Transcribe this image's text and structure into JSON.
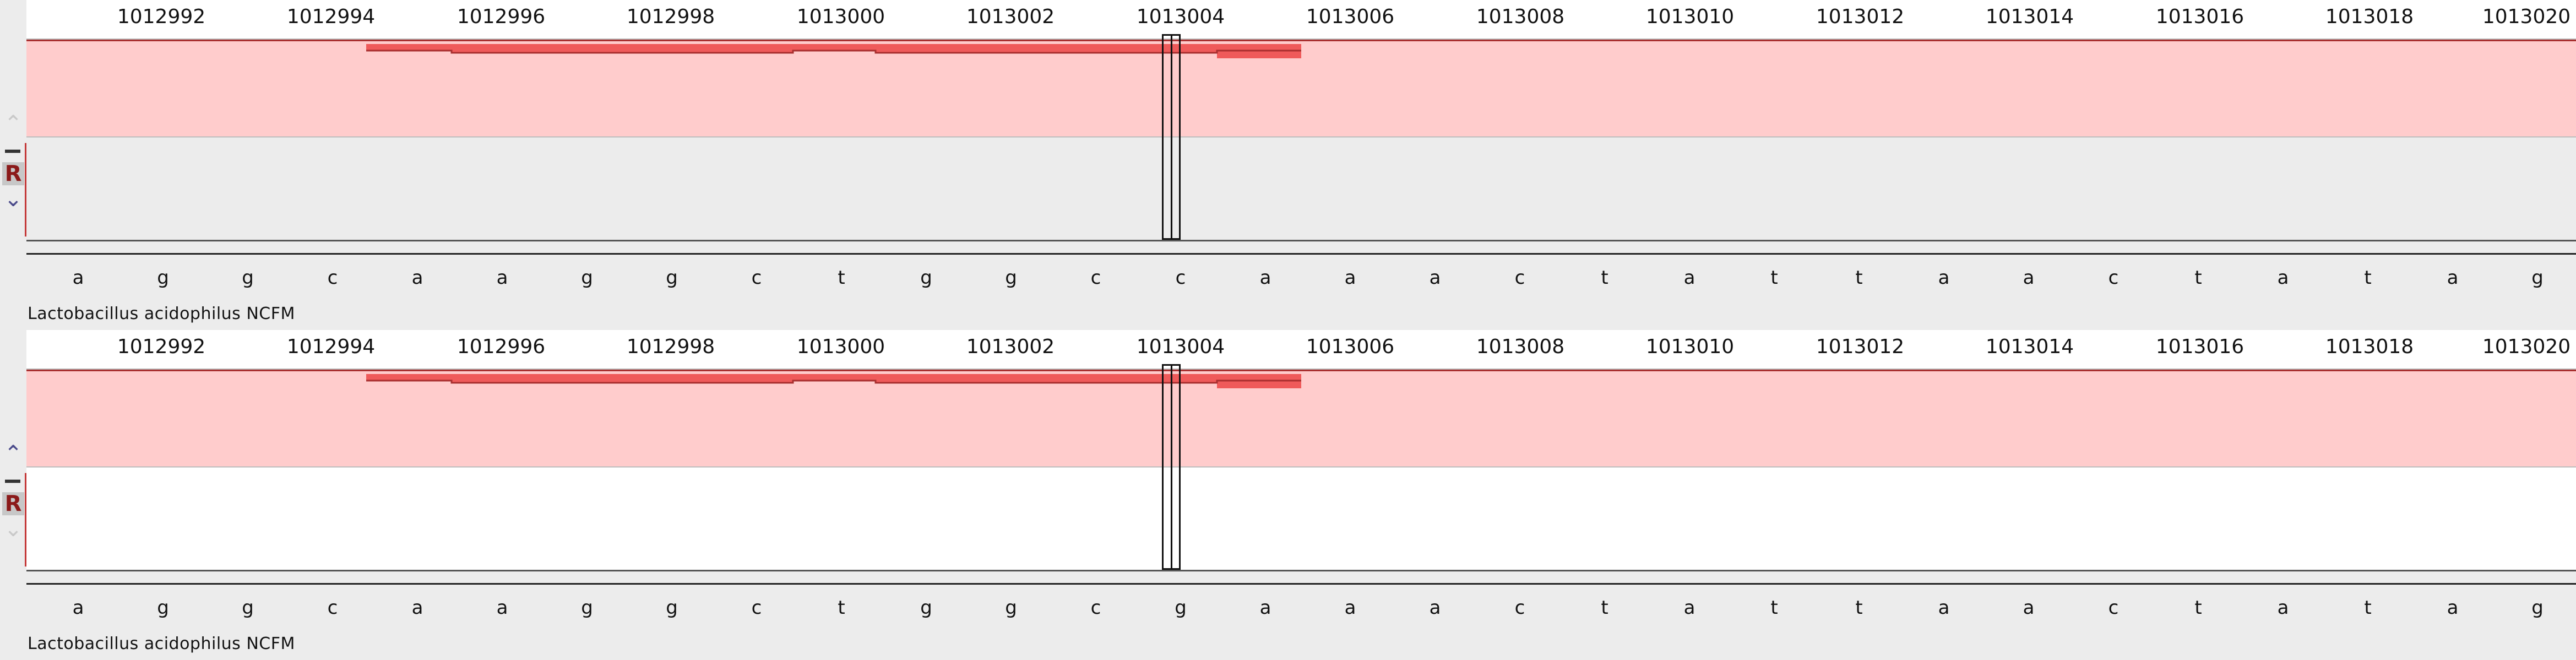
{
  "ruler": {
    "ticks": [
      "1012992",
      "1012994",
      "1012996",
      "1012998",
      "1013000",
      "1013002",
      "1013004",
      "1013006",
      "1013008",
      "1013010",
      "1013012",
      "1013014",
      "1013016",
      "1013018",
      "1013020"
    ]
  },
  "colors": {
    "track_fill": "#ffcccc",
    "feature": "#ef5a5a",
    "feature_edge": "#a82f2f",
    "lower_bg_top": "#ececec",
    "lower_bg_bottom": "#ffffff"
  },
  "panels": [
    {
      "sequence": [
        "a",
        "g",
        "g",
        "c",
        "a",
        "a",
        "g",
        "g",
        "c",
        "t",
        "g",
        "g",
        "c",
        "c",
        "a",
        "a",
        "a",
        "c",
        "t",
        "a",
        "t",
        "t",
        "a",
        "a",
        "c",
        "t",
        "a",
        "t",
        "a",
        "g"
      ],
      "organism": "Lactobacillus acidophilus NCFM",
      "controls": {
        "up_icon": "chevron-up-icon",
        "down_icon": "chevron-down-icon",
        "label": "R"
      }
    },
    {
      "sequence": [
        "a",
        "g",
        "g",
        "c",
        "a",
        "a",
        "g",
        "g",
        "c",
        "t",
        "g",
        "g",
        "c",
        "g",
        "a",
        "a",
        "a",
        "c",
        "t",
        "a",
        "t",
        "t",
        "a",
        "a",
        "c",
        "t",
        "a",
        "t",
        "a",
        "g"
      ],
      "organism": "Lactobacillus acidophilus NCFM",
      "controls": {
        "up_icon": "chevron-up-icon",
        "down_icon": "chevron-down-icon",
        "label": "R"
      }
    }
  ]
}
